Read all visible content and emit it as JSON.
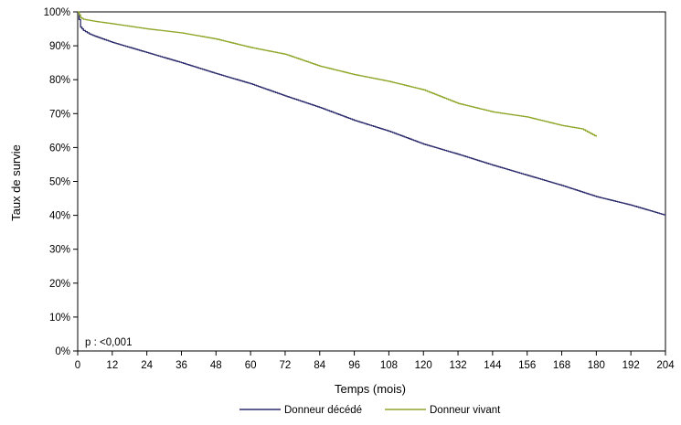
{
  "chart_data": {
    "type": "line",
    "xlabel": "Temps (mois)",
    "ylabel": "Taux de survie",
    "xlim": [
      0,
      204
    ],
    "ylim": [
      0,
      100
    ],
    "x_ticks": [
      0,
      12,
      24,
      36,
      48,
      60,
      72,
      84,
      96,
      108,
      120,
      132,
      144,
      156,
      168,
      180,
      192,
      204
    ],
    "y_ticks": [
      0,
      10,
      20,
      30,
      40,
      50,
      60,
      70,
      80,
      90,
      100
    ],
    "y_tick_labels": [
      "0%",
      "10%",
      "20%",
      "30%",
      "40%",
      "50%",
      "60%",
      "70%",
      "80%",
      "90%",
      "100%"
    ],
    "annotation": "p : <0,001",
    "legend_position": "bottom",
    "grid": false,
    "series": [
      {
        "name": "Donneur décédé",
        "color": "#2b2a6b",
        "x": [
          0,
          1,
          2,
          4,
          6,
          12,
          24,
          36,
          48,
          60,
          72,
          84,
          96,
          108,
          120,
          132,
          144,
          156,
          168,
          180,
          192,
          204
        ],
        "y": [
          100,
          95.5,
          94.5,
          93.5,
          92.8,
          91,
          88,
          85,
          81.8,
          78.8,
          75.2,
          71.8,
          68,
          64.8,
          61,
          58,
          54.8,
          51.8,
          48.8,
          45.5,
          43,
          40
        ]
      },
      {
        "name": "Donneur vivant",
        "color": "#8ea628",
        "x": [
          0,
          1,
          2,
          6,
          12,
          24,
          36,
          48,
          60,
          72,
          84,
          96,
          108,
          120,
          132,
          144,
          156,
          168,
          175,
          180
        ],
        "y": [
          100,
          98.3,
          97.8,
          97.2,
          96.5,
          95,
          93.8,
          92,
          89.5,
          87.5,
          84,
          81.5,
          79.5,
          77,
          73,
          70.5,
          69,
          66.5,
          65.5,
          63.2
        ]
      }
    ]
  }
}
